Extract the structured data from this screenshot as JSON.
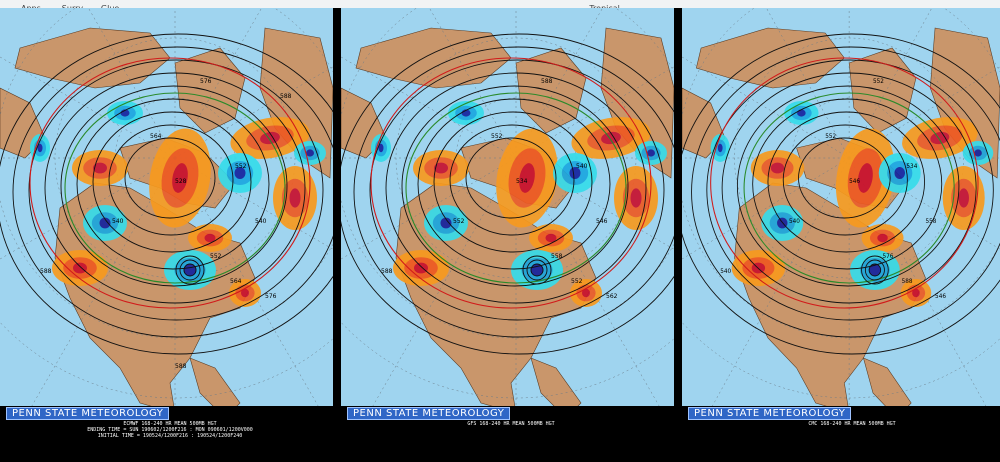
{
  "bookmarks_bar": {
    "items": [
      {
        "label": "Apps",
        "icon": "apps-grid-icon",
        "color": "#e8a317"
      },
      {
        "label": "Surry . . . Glue...",
        "icon": "bookmark-green-icon",
        "color": "#34a853"
      },
      {
        "label": ". . . . . . . . . . . . .",
        "icon": "bookmark-green-icon",
        "color": "#34a853"
      },
      {
        "label": ". . . . . . . .",
        "icon": "bookmark-blue-icon",
        "color": "#4285f4"
      },
      {
        "label": ". . . . . . . . . . . .",
        "icon": "bookmark-gray-icon",
        "color": "#5f6368"
      },
      {
        "label": ". . . . . . . . . .",
        "icon": "bookmark-mixed-icon",
        "color": "#a142f4"
      },
      {
        "label": ". . . . . . . . . . .",
        "icon": "bookmark-globe-icon",
        "color": "#5f6368"
      },
      {
        "label": ". . . . . . . . . . .",
        "icon": "bookmark-red-icon",
        "color": "#ea4335"
      },
      {
        "label": "Tropical . . . . .",
        "icon": "bookmark-redarrow-icon",
        "color": "#ea4335"
      },
      {
        "label": ". . . . . . . . . . .",
        "icon": "bookmark-blue-icon",
        "color": "#4285f4"
      }
    ]
  },
  "colors": {
    "ocean": "#9fd4ef",
    "land": "#c9966b",
    "warm_light": "#f79a1e",
    "warm_mid": "#ee5a22",
    "warm_dark": "#c8102e",
    "cold_light": "#36dcea",
    "cold_mid": "#1ba7e0",
    "cold_dark": "#15239f",
    "contour": "#111111",
    "contour_green": "#2a8a2a",
    "contour_red": "#d11a1a"
  },
  "panels": [
    {
      "model": "ECMWF",
      "banner": "PENN STATE METEOROLOGY",
      "caption_lines": [
        "ECMWF 168-240 HR MEAN 500MB HGT",
        "ENDING TIME = SUN 190602/1200F216 : MON 090601/1200V000",
        "INITIAL TIME = 190524/1200F216 : 190524/1200F240"
      ],
      "contour_labels": [
        "576",
        "564",
        "552",
        "540",
        "528",
        "540",
        "552",
        "564",
        "576",
        "588",
        "588",
        "588"
      ]
    },
    {
      "model": "GFS",
      "banner": "PENN STATE METEOROLOGY",
      "caption_lines": [
        "GFS 168-240 HR MEAN 500MB HGT"
      ],
      "contour_labels": [
        "588",
        "552",
        "540",
        "552",
        "534",
        "546",
        "558",
        "552",
        "562",
        "588"
      ]
    },
    {
      "model": "CMC",
      "banner": "PENN STATE METEOROLOGY",
      "caption_lines": [
        "CMC 168-240 HR MEAN 500MB HGT"
      ],
      "contour_labels": [
        "552",
        "552",
        "534",
        "540",
        "546",
        "558",
        "576",
        "588",
        "546",
        "540"
      ]
    }
  ]
}
